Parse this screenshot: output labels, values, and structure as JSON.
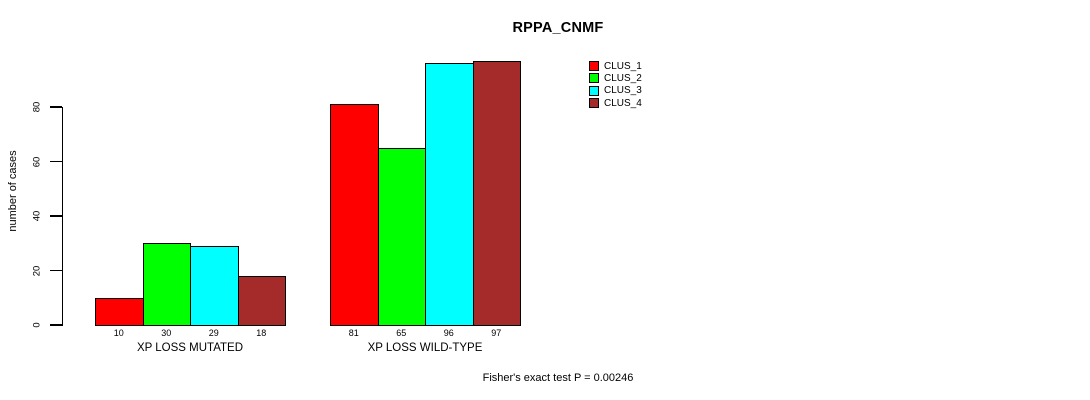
{
  "title": "RPPA_CNMF",
  "footer": "Fisher's exact test P = 0.00246",
  "chart_data": {
    "type": "bar",
    "title": "RPPA_CNMF",
    "xlabel": "",
    "ylabel": "number of cases",
    "categories": [
      "XP LOSS MUTATED",
      "XP LOSS WILD-TYPE"
    ],
    "series": [
      {
        "name": "CLUS_1",
        "color": "#FF0000",
        "values": [
          10,
          81
        ]
      },
      {
        "name": "CLUS_2",
        "color": "#00FF00",
        "values": [
          30,
          65
        ]
      },
      {
        "name": "CLUS_3",
        "color": "#00FFFF",
        "values": [
          29,
          96
        ]
      },
      {
        "name": "CLUS_4",
        "color": "#A52A2A",
        "values": [
          18,
          97
        ]
      }
    ],
    "yticks": [
      0,
      20,
      40,
      60,
      80
    ],
    "ylim": [
      0,
      100
    ],
    "grid": "off",
    "bar_value_labels": true,
    "legend_position": "top-right",
    "legend_entries": [
      "CLUS_1",
      "CLUS_2",
      "CLUS_3",
      "CLUS_4"
    ],
    "annotation": "Fisher's exact test P = 0.00246"
  }
}
